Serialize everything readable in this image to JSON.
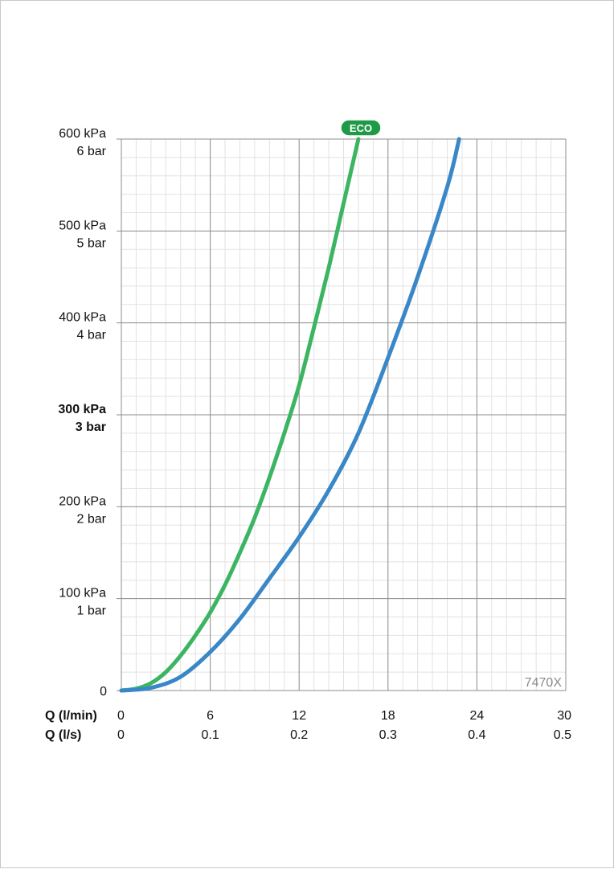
{
  "chart_data": {
    "type": "line",
    "watermark": "7470X",
    "y_axis": {
      "range": [
        0,
        600
      ],
      "ticks": [
        {
          "value": 0,
          "lines": [
            "0"
          ],
          "bold": false
        },
        {
          "value": 100,
          "lines": [
            "100 kPa",
            "1 bar"
          ],
          "bold": false
        },
        {
          "value": 200,
          "lines": [
            "200 kPa",
            "2 bar"
          ],
          "bold": false
        },
        {
          "value": 300,
          "lines": [
            "300 kPa",
            "3 bar"
          ],
          "bold": true
        },
        {
          "value": 400,
          "lines": [
            "400 kPa",
            "4 bar"
          ],
          "bold": false
        },
        {
          "value": 500,
          "lines": [
            "500 kPa",
            "5 bar"
          ],
          "bold": false
        },
        {
          "value": 600,
          "lines": [
            "600 kPa",
            "6 bar"
          ],
          "bold": false
        }
      ]
    },
    "x_axis": {
      "range": [
        0,
        30
      ],
      "rows": [
        {
          "title": "Q (l/min)",
          "labels": [
            "0",
            "6",
            "12",
            "18",
            "24",
            "30"
          ]
        },
        {
          "title": "Q (l/s)",
          "labels": [
            "0",
            "0.1",
            "0.2",
            "0.3",
            "0.4",
            "0.5"
          ]
        }
      ],
      "tick_values": [
        0,
        6,
        12,
        18,
        24,
        30
      ]
    },
    "grid": true,
    "series": [
      {
        "name": "ECO",
        "color": "#3cb563",
        "points": [
          [
            0,
            0
          ],
          [
            1,
            2
          ],
          [
            2,
            8
          ],
          [
            3,
            20
          ],
          [
            4,
            38
          ],
          [
            5,
            60
          ],
          [
            6,
            85
          ],
          [
            7,
            115
          ],
          [
            8,
            150
          ],
          [
            9,
            188
          ],
          [
            10,
            232
          ],
          [
            11,
            280
          ],
          [
            12,
            332
          ],
          [
            13,
            395
          ],
          [
            14,
            460
          ],
          [
            15,
            530
          ],
          [
            16,
            600
          ]
        ]
      },
      {
        "name": "",
        "color": "#3a87c8",
        "points": [
          [
            0,
            0
          ],
          [
            2,
            3
          ],
          [
            4,
            15
          ],
          [
            6,
            42
          ],
          [
            8,
            78
          ],
          [
            10,
            122
          ],
          [
            12,
            167
          ],
          [
            14,
            218
          ],
          [
            16,
            280
          ],
          [
            18,
            362
          ],
          [
            20,
            450
          ],
          [
            22,
            548
          ],
          [
            22.8,
            600
          ]
        ]
      }
    ]
  },
  "badge": {
    "label": "ECO",
    "color": "#1f9a47"
  }
}
